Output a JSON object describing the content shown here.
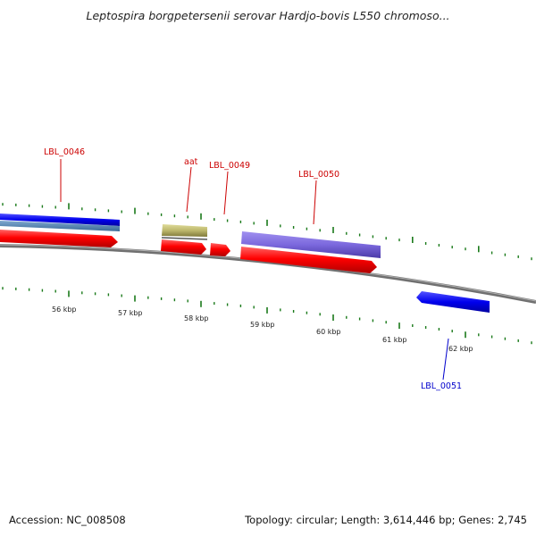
{
  "title": "Leptospira borgpetersenii serovar Hardjo-bovis L550 chromoso...",
  "footer": {
    "accession": "Accession: NC_008508",
    "stats": "Topology: circular; Length: 3,614,446 bp; Genes: 2,745"
  },
  "colors": {
    "forward_gene": "#ff0000",
    "forward_cds_blue": "#0000ee",
    "forward_cds_steel": "#4682b4",
    "purple_cds": "#7b68dd",
    "khaki_feature": "#bdb76b",
    "reverse_gene": "#0000ff",
    "tick": "#1a7a1a",
    "backbone": "#808080",
    "label_red": "#cc0000",
    "label_blue": "#0000cc"
  },
  "tick_labels": [
    "56 kbp",
    "57 kbp",
    "58 kbp",
    "59 kbp",
    "60 kbp",
    "61 kbp",
    "62 kbp"
  ],
  "gene_labels": [
    {
      "id": "lbl0046",
      "text": "LBL_0046",
      "strand": "forward"
    },
    {
      "id": "aat",
      "text": "aat",
      "strand": "forward"
    },
    {
      "id": "lbl0049",
      "text": "LBL_0049",
      "strand": "forward"
    },
    {
      "id": "lbl0050",
      "text": "LBL_0050",
      "strand": "forward"
    },
    {
      "id": "lbl0051",
      "text": "LBL_0051",
      "strand": "reverse"
    }
  ]
}
